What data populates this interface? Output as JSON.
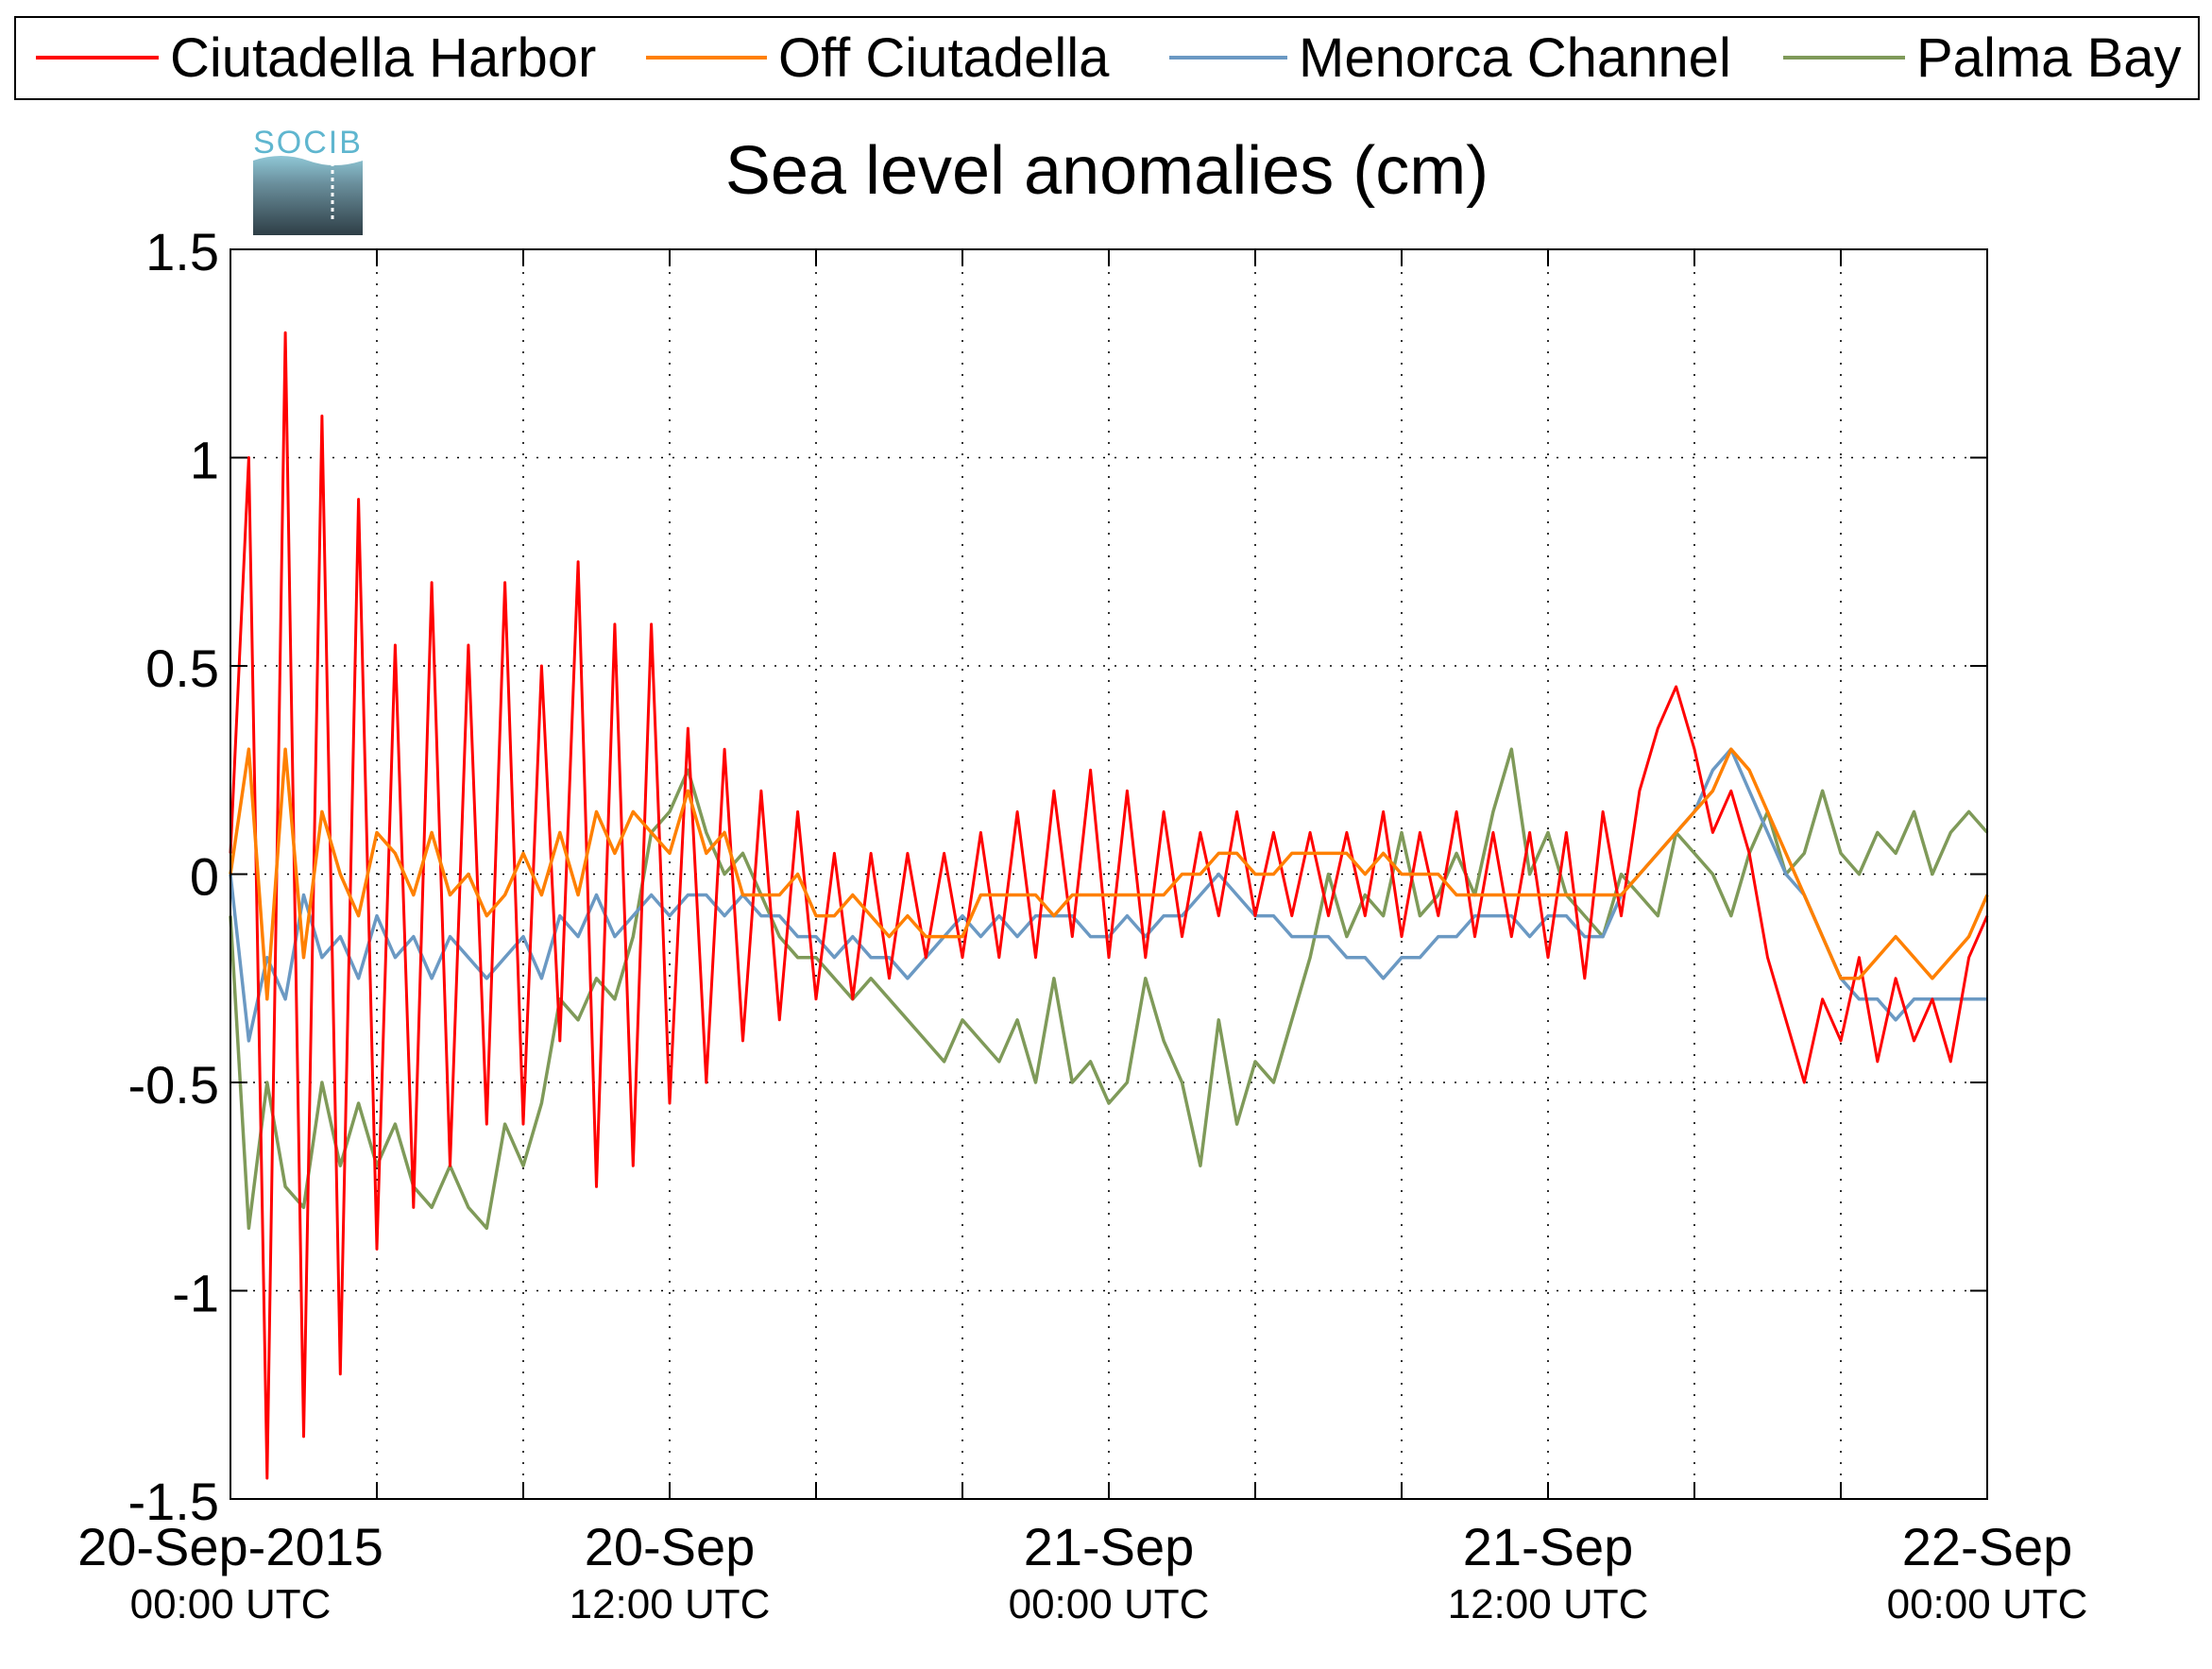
{
  "chart_data": {
    "type": "line",
    "title": "Sea level anomalies (cm)",
    "logo_text": "SOCIB",
    "xlabel": "",
    "ylabel": "",
    "ylim": [
      -1.5,
      1.5
    ],
    "yticks": [
      -1.5,
      -1,
      -0.5,
      0,
      0.5,
      1,
      1.5
    ],
    "ytick_labels": [
      "-1.5",
      "-1",
      "-0.5",
      "0",
      "0.5",
      "1",
      "1.5"
    ],
    "xlim": [
      "2015-09-20T00:00",
      "2015-09-22T00:00"
    ],
    "xtick_labels": [
      {
        "x": "2015-09-20T00:00",
        "date": "20-Sep-2015",
        "time": "00:00 UTC"
      },
      {
        "x": "2015-09-20T12:00",
        "date": "20-Sep",
        "time": "12:00 UTC"
      },
      {
        "x": "2015-09-21T00:00",
        "date": "21-Sep",
        "time": "00:00 UTC"
      },
      {
        "x": "2015-09-21T12:00",
        "date": "21-Sep",
        "time": "12:00 UTC"
      },
      {
        "x": "2015-09-22T00:00",
        "date": "22-Sep",
        "time": "00:00 UTC"
      }
    ],
    "grid": true,
    "legend_position": "top, above plot",
    "series": [
      {
        "name": "Ciutadella Harbor",
        "color": "#ff0000",
        "x": [
          "2015-09-20T00:00",
          "2015-09-20T00:30",
          "2015-09-20T01:00",
          "2015-09-20T01:30",
          "2015-09-20T02:00",
          "2015-09-20T02:30",
          "2015-09-20T03:00",
          "2015-09-20T03:30",
          "2015-09-20T04:00",
          "2015-09-20T04:30",
          "2015-09-20T05:00",
          "2015-09-20T05:30",
          "2015-09-20T06:00",
          "2015-09-20T06:30",
          "2015-09-20T07:00",
          "2015-09-20T07:30",
          "2015-09-20T08:00",
          "2015-09-20T08:30",
          "2015-09-20T09:00",
          "2015-09-20T09:30",
          "2015-09-20T10:00",
          "2015-09-20T10:30",
          "2015-09-20T11:00",
          "2015-09-20T11:30",
          "2015-09-20T12:00",
          "2015-09-20T12:30",
          "2015-09-20T13:00",
          "2015-09-20T13:30",
          "2015-09-20T14:00",
          "2015-09-20T14:30",
          "2015-09-20T15:00",
          "2015-09-20T15:30",
          "2015-09-20T16:00",
          "2015-09-20T16:30",
          "2015-09-20T17:00",
          "2015-09-20T17:30",
          "2015-09-20T18:00",
          "2015-09-20T18:30",
          "2015-09-20T19:00",
          "2015-09-20T19:30",
          "2015-09-20T20:00",
          "2015-09-20T20:30",
          "2015-09-20T21:00",
          "2015-09-20T21:30",
          "2015-09-20T22:00",
          "2015-09-20T22:30",
          "2015-09-20T23:00",
          "2015-09-20T23:30",
          "2015-09-21T00:00",
          "2015-09-21T00:30",
          "2015-09-21T01:00",
          "2015-09-21T01:30",
          "2015-09-21T02:00",
          "2015-09-21T02:30",
          "2015-09-21T03:00",
          "2015-09-21T03:30",
          "2015-09-21T04:00",
          "2015-09-21T04:30",
          "2015-09-21T05:00",
          "2015-09-21T05:30",
          "2015-09-21T06:00",
          "2015-09-21T06:30",
          "2015-09-21T07:00",
          "2015-09-21T07:30",
          "2015-09-21T08:00",
          "2015-09-21T08:30",
          "2015-09-21T09:00",
          "2015-09-21T09:30",
          "2015-09-21T10:00",
          "2015-09-21T10:30",
          "2015-09-21T11:00",
          "2015-09-21T11:30",
          "2015-09-21T12:00",
          "2015-09-21T12:30",
          "2015-09-21T13:00",
          "2015-09-21T13:30",
          "2015-09-21T14:00",
          "2015-09-21T14:30",
          "2015-09-21T15:00",
          "2015-09-21T15:30",
          "2015-09-21T16:00",
          "2015-09-21T16:30",
          "2015-09-21T17:00",
          "2015-09-21T17:30",
          "2015-09-21T18:00",
          "2015-09-21T18:30",
          "2015-09-21T19:00",
          "2015-09-21T19:30",
          "2015-09-21T20:00",
          "2015-09-21T20:30",
          "2015-09-21T21:00",
          "2015-09-21T21:30",
          "2015-09-21T22:00",
          "2015-09-21T22:30",
          "2015-09-21T23:00",
          "2015-09-21T23:30",
          "2015-09-22T00:00"
        ],
        "values": [
          0.05,
          1.0,
          -1.45,
          1.3,
          -1.35,
          1.1,
          -1.2,
          0.9,
          -0.9,
          0.55,
          -0.8,
          0.7,
          -0.7,
          0.55,
          -0.6,
          0.7,
          -0.6,
          0.5,
          -0.4,
          0.75,
          -0.75,
          0.6,
          -0.7,
          0.6,
          -0.55,
          0.35,
          -0.5,
          0.3,
          -0.4,
          0.2,
          -0.35,
          0.15,
          -0.3,
          0.05,
          -0.3,
          0.05,
          -0.25,
          0.05,
          -0.2,
          0.05,
          -0.2,
          0.1,
          -0.2,
          0.15,
          -0.2,
          0.2,
          -0.15,
          0.25,
          -0.2,
          0.2,
          -0.2,
          0.15,
          -0.15,
          0.1,
          -0.1,
          0.15,
          -0.1,
          0.1,
          -0.1,
          0.1,
          -0.1,
          0.1,
          -0.1,
          0.15,
          -0.15,
          0.1,
          -0.1,
          0.15,
          -0.15,
          0.1,
          -0.15,
          0.1,
          -0.2,
          0.1,
          -0.25,
          0.15,
          -0.1,
          0.2,
          0.35,
          0.45,
          0.3,
          0.1,
          0.2,
          0.05,
          -0.2,
          -0.35,
          -0.5,
          -0.3,
          -0.4,
          -0.2,
          -0.45,
          -0.25,
          -0.4,
          -0.3,
          -0.45,
          -0.2,
          -0.1
        ]
      },
      {
        "name": "Off Ciutadella",
        "color": "#ff8000",
        "x": [
          "2015-09-20T00:00",
          "2015-09-20T00:30",
          "2015-09-20T01:00",
          "2015-09-20T01:30",
          "2015-09-20T02:00",
          "2015-09-20T02:30",
          "2015-09-20T03:00",
          "2015-09-20T03:30",
          "2015-09-20T04:00",
          "2015-09-20T04:30",
          "2015-09-20T05:00",
          "2015-09-20T05:30",
          "2015-09-20T06:00",
          "2015-09-20T06:30",
          "2015-09-20T07:00",
          "2015-09-20T07:30",
          "2015-09-20T08:00",
          "2015-09-20T08:30",
          "2015-09-20T09:00",
          "2015-09-20T09:30",
          "2015-09-20T10:00",
          "2015-09-20T10:30",
          "2015-09-20T11:00",
          "2015-09-20T11:30",
          "2015-09-20T12:00",
          "2015-09-20T12:30",
          "2015-09-20T13:00",
          "2015-09-20T13:30",
          "2015-09-20T14:00",
          "2015-09-20T14:30",
          "2015-09-20T15:00",
          "2015-09-20T15:30",
          "2015-09-20T16:00",
          "2015-09-20T16:30",
          "2015-09-20T17:00",
          "2015-09-20T17:30",
          "2015-09-20T18:00",
          "2015-09-20T18:30",
          "2015-09-20T19:00",
          "2015-09-20T19:30",
          "2015-09-20T20:00",
          "2015-09-20T20:30",
          "2015-09-20T21:00",
          "2015-09-20T21:30",
          "2015-09-20T22:00",
          "2015-09-20T22:30",
          "2015-09-20T23:00",
          "2015-09-20T23:30",
          "2015-09-21T00:00",
          "2015-09-21T00:30",
          "2015-09-21T01:00",
          "2015-09-21T01:30",
          "2015-09-21T02:00",
          "2015-09-21T02:30",
          "2015-09-21T03:00",
          "2015-09-21T03:30",
          "2015-09-21T04:00",
          "2015-09-21T04:30",
          "2015-09-21T05:00",
          "2015-09-21T05:30",
          "2015-09-21T06:00",
          "2015-09-21T06:30",
          "2015-09-21T07:00",
          "2015-09-21T07:30",
          "2015-09-21T08:00",
          "2015-09-21T08:30",
          "2015-09-21T09:00",
          "2015-09-21T09:30",
          "2015-09-21T10:00",
          "2015-09-21T10:30",
          "2015-09-21T11:00",
          "2015-09-21T11:30",
          "2015-09-21T12:00",
          "2015-09-21T12:30",
          "2015-09-21T13:00",
          "2015-09-21T13:30",
          "2015-09-21T14:00",
          "2015-09-21T14:30",
          "2015-09-21T15:00",
          "2015-09-21T15:30",
          "2015-09-21T16:00",
          "2015-09-21T16:30",
          "2015-09-21T17:00",
          "2015-09-21T17:30",
          "2015-09-21T18:00",
          "2015-09-21T18:30",
          "2015-09-21T19:00",
          "2015-09-21T19:30",
          "2015-09-21T20:00",
          "2015-09-21T20:30",
          "2015-09-21T21:00",
          "2015-09-21T21:30",
          "2015-09-21T22:00",
          "2015-09-21T22:30",
          "2015-09-21T23:00",
          "2015-09-21T23:30",
          "2015-09-22T00:00"
        ],
        "values": [
          0.0,
          0.3,
          -0.3,
          0.3,
          -0.2,
          0.15,
          0.0,
          -0.1,
          0.1,
          0.05,
          -0.05,
          0.1,
          -0.05,
          0.0,
          -0.1,
          -0.05,
          0.05,
          -0.05,
          0.1,
          -0.05,
          0.15,
          0.05,
          0.15,
          0.1,
          0.05,
          0.2,
          0.05,
          0.1,
          -0.05,
          -0.05,
          -0.05,
          0.0,
          -0.1,
          -0.1,
          -0.05,
          -0.1,
          -0.15,
          -0.1,
          -0.15,
          -0.15,
          -0.15,
          -0.05,
          -0.05,
          -0.05,
          -0.05,
          -0.1,
          -0.05,
          -0.05,
          -0.05,
          -0.05,
          -0.05,
          -0.05,
          0.0,
          0.0,
          0.05,
          0.05,
          0.0,
          0.0,
          0.05,
          0.05,
          0.05,
          0.05,
          0.0,
          0.05,
          0.0,
          0.0,
          0.0,
          -0.05,
          -0.05,
          -0.05,
          -0.05,
          -0.05,
          -0.05,
          -0.05,
          -0.05,
          -0.05,
          -0.05,
          0.0,
          0.05,
          0.1,
          0.15,
          0.2,
          0.3,
          0.25,
          0.15,
          0.05,
          -0.05,
          -0.15,
          -0.25,
          -0.25,
          -0.2,
          -0.15,
          -0.2,
          -0.25,
          -0.2,
          -0.15,
          -0.05
        ]
      },
      {
        "name": "Menorca Channel",
        "color": "#6b99c3",
        "x": [
          "2015-09-20T00:00",
          "2015-09-20T00:30",
          "2015-09-20T01:00",
          "2015-09-20T01:30",
          "2015-09-20T02:00",
          "2015-09-20T02:30",
          "2015-09-20T03:00",
          "2015-09-20T03:30",
          "2015-09-20T04:00",
          "2015-09-20T04:30",
          "2015-09-20T05:00",
          "2015-09-20T05:30",
          "2015-09-20T06:00",
          "2015-09-20T06:30",
          "2015-09-20T07:00",
          "2015-09-20T07:30",
          "2015-09-20T08:00",
          "2015-09-20T08:30",
          "2015-09-20T09:00",
          "2015-09-20T09:30",
          "2015-09-20T10:00",
          "2015-09-20T10:30",
          "2015-09-20T11:00",
          "2015-09-20T11:30",
          "2015-09-20T12:00",
          "2015-09-20T12:30",
          "2015-09-20T13:00",
          "2015-09-20T13:30",
          "2015-09-20T14:00",
          "2015-09-20T14:30",
          "2015-09-20T15:00",
          "2015-09-20T15:30",
          "2015-09-20T16:00",
          "2015-09-20T16:30",
          "2015-09-20T17:00",
          "2015-09-20T17:30",
          "2015-09-20T18:00",
          "2015-09-20T18:30",
          "2015-09-20T19:00",
          "2015-09-20T19:30",
          "2015-09-20T20:00",
          "2015-09-20T20:30",
          "2015-09-20T21:00",
          "2015-09-20T21:30",
          "2015-09-20T22:00",
          "2015-09-20T22:30",
          "2015-09-20T23:00",
          "2015-09-20T23:30",
          "2015-09-21T00:00",
          "2015-09-21T00:30",
          "2015-09-21T01:00",
          "2015-09-21T01:30",
          "2015-09-21T02:00",
          "2015-09-21T02:30",
          "2015-09-21T03:00",
          "2015-09-21T03:30",
          "2015-09-21T04:00",
          "2015-09-21T04:30",
          "2015-09-21T05:00",
          "2015-09-21T05:30",
          "2015-09-21T06:00",
          "2015-09-21T06:30",
          "2015-09-21T07:00",
          "2015-09-21T07:30",
          "2015-09-21T08:00",
          "2015-09-21T08:30",
          "2015-09-21T09:00",
          "2015-09-21T09:30",
          "2015-09-21T10:00",
          "2015-09-21T10:30",
          "2015-09-21T11:00",
          "2015-09-21T11:30",
          "2015-09-21T12:00",
          "2015-09-21T12:30",
          "2015-09-21T13:00",
          "2015-09-21T13:30",
          "2015-09-21T14:00",
          "2015-09-21T14:30",
          "2015-09-21T15:00",
          "2015-09-21T15:30",
          "2015-09-21T16:00",
          "2015-09-21T16:30",
          "2015-09-21T17:00",
          "2015-09-21T17:30",
          "2015-09-21T18:00",
          "2015-09-21T18:30",
          "2015-09-21T19:00",
          "2015-09-21T19:30",
          "2015-09-21T20:00",
          "2015-09-21T20:30",
          "2015-09-21T21:00",
          "2015-09-21T21:30",
          "2015-09-21T22:00",
          "2015-09-21T22:30",
          "2015-09-21T23:00",
          "2015-09-21T23:30",
          "2015-09-22T00:00"
        ],
        "values": [
          0.0,
          -0.4,
          -0.2,
          -0.3,
          -0.05,
          -0.2,
          -0.15,
          -0.25,
          -0.1,
          -0.2,
          -0.15,
          -0.25,
          -0.15,
          -0.2,
          -0.25,
          -0.2,
          -0.15,
          -0.25,
          -0.1,
          -0.15,
          -0.05,
          -0.15,
          -0.1,
          -0.05,
          -0.1,
          -0.05,
          -0.05,
          -0.1,
          -0.05,
          -0.1,
          -0.1,
          -0.15,
          -0.15,
          -0.2,
          -0.15,
          -0.2,
          -0.2,
          -0.25,
          -0.2,
          -0.15,
          -0.1,
          -0.15,
          -0.1,
          -0.15,
          -0.1,
          -0.1,
          -0.1,
          -0.15,
          -0.15,
          -0.1,
          -0.15,
          -0.1,
          -0.1,
          -0.05,
          0.0,
          -0.05,
          -0.1,
          -0.1,
          -0.15,
          -0.15,
          -0.15,
          -0.2,
          -0.2,
          -0.25,
          -0.2,
          -0.2,
          -0.15,
          -0.15,
          -0.1,
          -0.1,
          -0.1,
          -0.15,
          -0.1,
          -0.1,
          -0.15,
          -0.15,
          -0.05,
          0.0,
          0.05,
          0.1,
          0.15,
          0.25,
          0.3,
          0.2,
          0.1,
          0.0,
          -0.05,
          -0.15,
          -0.25,
          -0.3,
          -0.3,
          -0.35,
          -0.3,
          -0.3,
          -0.3,
          -0.3,
          -0.3
        ]
      },
      {
        "name": "Palma Bay",
        "color": "#7f9a59",
        "x": [
          "2015-09-20T00:00",
          "2015-09-20T00:30",
          "2015-09-20T01:00",
          "2015-09-20T01:30",
          "2015-09-20T02:00",
          "2015-09-20T02:30",
          "2015-09-20T03:00",
          "2015-09-20T03:30",
          "2015-09-20T04:00",
          "2015-09-20T04:30",
          "2015-09-20T05:00",
          "2015-09-20T05:30",
          "2015-09-20T06:00",
          "2015-09-20T06:30",
          "2015-09-20T07:00",
          "2015-09-20T07:30",
          "2015-09-20T08:00",
          "2015-09-20T08:30",
          "2015-09-20T09:00",
          "2015-09-20T09:30",
          "2015-09-20T10:00",
          "2015-09-20T10:30",
          "2015-09-20T11:00",
          "2015-09-20T11:30",
          "2015-09-20T12:00",
          "2015-09-20T12:30",
          "2015-09-20T13:00",
          "2015-09-20T13:30",
          "2015-09-20T14:00",
          "2015-09-20T14:30",
          "2015-09-20T15:00",
          "2015-09-20T15:30",
          "2015-09-20T16:00",
          "2015-09-20T16:30",
          "2015-09-20T17:00",
          "2015-09-20T17:30",
          "2015-09-20T18:00",
          "2015-09-20T18:30",
          "2015-09-20T19:00",
          "2015-09-20T19:30",
          "2015-09-20T20:00",
          "2015-09-20T20:30",
          "2015-09-20T21:00",
          "2015-09-20T21:30",
          "2015-09-20T22:00",
          "2015-09-20T22:30",
          "2015-09-20T23:00",
          "2015-09-20T23:30",
          "2015-09-21T00:00",
          "2015-09-21T00:30",
          "2015-09-21T01:00",
          "2015-09-21T01:30",
          "2015-09-21T02:00",
          "2015-09-21T02:30",
          "2015-09-21T03:00",
          "2015-09-21T03:30",
          "2015-09-21T04:00",
          "2015-09-21T04:30",
          "2015-09-21T05:00",
          "2015-09-21T05:30",
          "2015-09-21T06:00",
          "2015-09-21T06:30",
          "2015-09-21T07:00",
          "2015-09-21T07:30",
          "2015-09-21T08:00",
          "2015-09-21T08:30",
          "2015-09-21T09:00",
          "2015-09-21T09:30",
          "2015-09-21T10:00",
          "2015-09-21T10:30",
          "2015-09-21T11:00",
          "2015-09-21T11:30",
          "2015-09-21T12:00",
          "2015-09-21T12:30",
          "2015-09-21T13:00",
          "2015-09-21T13:30",
          "2015-09-21T14:00",
          "2015-09-21T14:30",
          "2015-09-21T15:00",
          "2015-09-21T15:30",
          "2015-09-21T16:00",
          "2015-09-21T16:30",
          "2015-09-21T17:00",
          "2015-09-21T17:30",
          "2015-09-21T18:00",
          "2015-09-21T18:30",
          "2015-09-21T19:00",
          "2015-09-21T19:30",
          "2015-09-21T20:00",
          "2015-09-21T20:30",
          "2015-09-21T21:00",
          "2015-09-21T21:30",
          "2015-09-21T22:00",
          "2015-09-21T22:30",
          "2015-09-21T23:00",
          "2015-09-21T23:30",
          "2015-09-22T00:00"
        ],
        "values": [
          -0.1,
          -0.85,
          -0.5,
          -0.75,
          -0.8,
          -0.5,
          -0.7,
          -0.55,
          -0.7,
          -0.6,
          -0.75,
          -0.8,
          -0.7,
          -0.8,
          -0.85,
          -0.6,
          -0.7,
          -0.55,
          -0.3,
          -0.35,
          -0.25,
          -0.3,
          -0.15,
          0.1,
          0.15,
          0.25,
          0.1,
          0.0,
          0.05,
          -0.05,
          -0.15,
          -0.2,
          -0.2,
          -0.25,
          -0.3,
          -0.25,
          -0.3,
          -0.35,
          -0.4,
          -0.45,
          -0.35,
          -0.4,
          -0.45,
          -0.35,
          -0.5,
          -0.25,
          -0.5,
          -0.45,
          -0.55,
          -0.5,
          -0.25,
          -0.4,
          -0.5,
          -0.7,
          -0.35,
          -0.6,
          -0.45,
          -0.5,
          -0.35,
          -0.2,
          0.0,
          -0.15,
          -0.05,
          -0.1,
          0.1,
          -0.1,
          -0.05,
          0.05,
          -0.05,
          0.15,
          0.3,
          0.0,
          0.1,
          -0.05,
          -0.1,
          -0.15,
          0.0,
          -0.05,
          -0.1,
          0.1,
          0.05,
          0.0,
          -0.1,
          0.05,
          0.15,
          0.0,
          0.05,
          0.2,
          0.05,
          0.0,
          0.1,
          0.05,
          0.15,
          0.0,
          0.1,
          0.15,
          0.1
        ]
      }
    ]
  }
}
